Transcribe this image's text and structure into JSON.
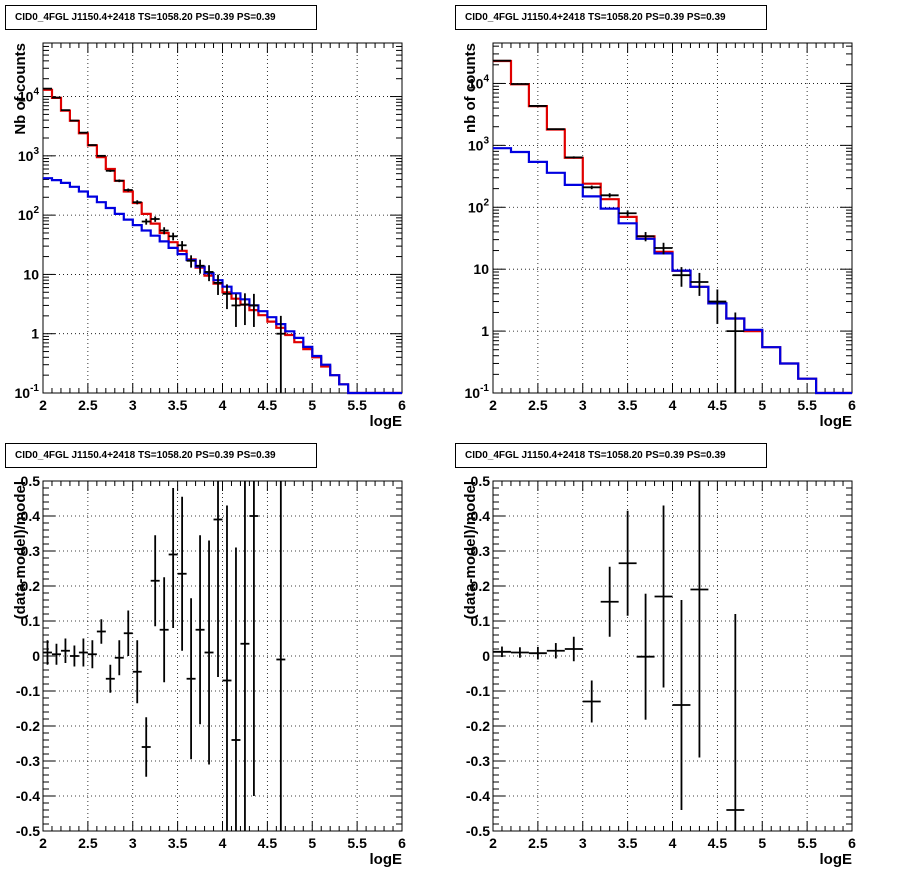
{
  "colors": {
    "data": "#000000",
    "model_total": "#e00000",
    "model_component": "#0000e0",
    "grid": "#000000"
  },
  "chart_data": [
    {
      "type": "line",
      "title": "CID0_4FGL J1150.4+2418 TS=1058.20 PS=0.39 PS=0.39",
      "xlabel": "logE",
      "ylabel": "Nb of counts",
      "xlim": [
        2,
        6
      ],
      "ylim": [
        0.1,
        80000
      ],
      "yscale": "log",
      "grid": true,
      "x_ticks": [
        "2",
        "2.5",
        "3",
        "3.5",
        "4",
        "4.5",
        "5",
        "5.5",
        "6"
      ],
      "y_ticks": [
        "10^-1",
        "1",
        "10",
        "10^2",
        "10^3",
        "10^4"
      ],
      "bin_width": 0.1,
      "series": [
        {
          "kind": "hist",
          "color": "#e00000",
          "bin_low": [
            2.0,
            2.1,
            2.2,
            2.3,
            2.4,
            2.5,
            2.6,
            2.7,
            2.8,
            2.9,
            3.0,
            3.1,
            3.2,
            3.3,
            3.4,
            3.5,
            3.6,
            3.7,
            3.8,
            3.9,
            4.0,
            4.1,
            4.2,
            4.3,
            4.4,
            4.5,
            4.6,
            4.7,
            4.8,
            4.9,
            5.0,
            5.1,
            5.2,
            5.3,
            5.4,
            5.5,
            5.6,
            5.7,
            5.8,
            5.9
          ],
          "values": [
            13000,
            9500,
            5800,
            3900,
            2400,
            1500,
            950,
            600,
            380,
            250,
            160,
            105,
            72,
            50,
            35,
            25,
            18,
            13,
            9.5,
            7,
            5,
            3.9,
            3.1,
            2.5,
            2.05,
            1.6,
            1.26,
            0.95,
            0.72,
            0.55,
            0.4,
            0.28,
            0.2,
            0.14,
            0.1,
            0.1,
            0.1,
            0.1,
            0.1,
            0.1
          ]
        },
        {
          "kind": "hist",
          "color": "#0000e0",
          "bin_low": [
            2.0,
            2.1,
            2.2,
            2.3,
            2.4,
            2.5,
            2.6,
            2.7,
            2.8,
            2.9,
            3.0,
            3.1,
            3.2,
            3.3,
            3.4,
            3.5,
            3.6,
            3.7,
            3.8,
            3.9,
            4.0,
            4.1,
            4.2,
            4.3,
            4.4,
            4.5,
            4.6,
            4.7,
            4.8,
            4.9,
            5.0,
            5.1,
            5.2,
            5.3,
            5.4,
            5.5,
            5.6,
            5.7,
            5.8,
            5.9
          ],
          "values": [
            420,
            390,
            350,
            300,
            250,
            205,
            165,
            132,
            105,
            84,
            68,
            55,
            45,
            36,
            28,
            22,
            17.5,
            13.5,
            10.5,
            8,
            6.2,
            4.8,
            3.8,
            3,
            2.4,
            1.9,
            1.45,
            1.1,
            0.85,
            0.6,
            0.42,
            0.3,
            0.2,
            0.14,
            0.1,
            0.1,
            0.1,
            0.1,
            0.1,
            0.1
          ]
        },
        {
          "kind": "points",
          "color": "#000000",
          "x": [
            2.05,
            2.15,
            2.25,
            2.35,
            2.45,
            2.55,
            2.65,
            2.75,
            2.85,
            2.95,
            3.05,
            3.15,
            3.25,
            3.35,
            3.45,
            3.55,
            3.65,
            3.75,
            3.85,
            3.95,
            4.05,
            4.15,
            4.25,
            4.35,
            4.65
          ],
          "y": [
            13600,
            9600,
            5900,
            3930,
            2460,
            1520,
            1000,
            560,
            380,
            265,
            165,
            78,
            86,
            55,
            44,
            31,
            17,
            14,
            11,
            7.2,
            4.7,
            3,
            3.1,
            3,
            1.0
          ],
          "err_low": [
            117,
            98,
            77,
            63,
            50,
            39,
            32,
            24,
            20,
            16,
            13,
            9,
            9,
            7.5,
            6.5,
            5.5,
            4,
            3.7,
            3.3,
            2.7,
            2.1,
            1.7,
            1.7,
            1.7,
            1.0
          ],
          "err_high": [
            117,
            98,
            77,
            63,
            50,
            39,
            32,
            24,
            20,
            16,
            13,
            9,
            9,
            7.5,
            6.5,
            5.5,
            4,
            3.7,
            3.3,
            2.7,
            2.1,
            1.7,
            1.7,
            1.7,
            1.0
          ]
        }
      ]
    },
    {
      "type": "line",
      "title": "CID0_4FGL J1150.4+2418 TS=1058.20 PS=0.39 PS=0.39",
      "xlabel": "logE",
      "ylabel": "nb of counts",
      "xlim": [
        2,
        6
      ],
      "ylim": [
        0.1,
        45000
      ],
      "yscale": "log",
      "grid": true,
      "x_ticks": [
        "2",
        "2.5",
        "3",
        "3.5",
        "4",
        "4.5",
        "5",
        "5.5",
        "6"
      ],
      "y_ticks": [
        "10^-1",
        "1",
        "10",
        "10^2",
        "10^3",
        "10^4"
      ],
      "bin_width": 0.2,
      "series": [
        {
          "kind": "hist",
          "color": "#e00000",
          "bin_low": [
            2.0,
            2.2,
            2.4,
            2.6,
            2.8,
            3.0,
            3.2,
            3.4,
            3.6,
            3.8,
            4.0,
            4.2,
            4.4,
            4.6,
            4.8,
            5.0,
            5.2,
            5.4,
            5.6,
            5.8
          ],
          "values": [
            23000,
            9700,
            4300,
            1800,
            630,
            240,
            135,
            70,
            34,
            19,
            9.4,
            5.2,
            2.8,
            1.6,
            1.0,
            0.55,
            0.3,
            0.17,
            0.1,
            0.1
          ]
        },
        {
          "kind": "hist",
          "color": "#0000e0",
          "bin_low": [
            2.0,
            2.2,
            2.4,
            2.6,
            2.8,
            3.0,
            3.2,
            3.4,
            3.6,
            3.8,
            4.0,
            4.2,
            4.4,
            4.6,
            4.8,
            5.0,
            5.2,
            5.4,
            5.6,
            5.8
          ],
          "values": [
            900,
            780,
            540,
            360,
            230,
            150,
            95,
            55,
            31,
            18,
            9.5,
            5.2,
            2.8,
            1.6,
            1.05,
            0.55,
            0.3,
            0.17,
            0.1,
            0.1
          ]
        },
        {
          "kind": "points",
          "color": "#000000",
          "x": [
            2.1,
            2.3,
            2.5,
            2.7,
            2.9,
            3.1,
            3.3,
            3.5,
            3.7,
            3.9,
            4.1,
            4.3,
            4.5,
            4.7
          ],
          "y": [
            23300,
            9800,
            4330,
            1830,
            640,
            210,
            156,
            80,
            34,
            22,
            8,
            6.2,
            3,
            1.0
          ],
          "err_low": [
            150,
            99,
            66,
            43,
            25,
            14,
            12.5,
            9,
            5.8,
            4.7,
            2.8,
            2.5,
            1.7,
            1.0
          ],
          "err_high": [
            150,
            99,
            66,
            43,
            25,
            14,
            12.5,
            9,
            5.8,
            4.7,
            2.8,
            2.5,
            1.7,
            1.0
          ]
        }
      ]
    },
    {
      "type": "scatter",
      "title": "CID0_4FGL J1150.4+2418 TS=1058.20 PS=0.39 PS=0.39",
      "xlabel": "logE",
      "ylabel": "(data-model)/model",
      "xlim": [
        2,
        6
      ],
      "ylim": [
        -0.5,
        0.5
      ],
      "yscale": "linear",
      "grid": true,
      "x_ticks": [
        "2",
        "2.5",
        "3",
        "3.5",
        "4",
        "4.5",
        "5",
        "5.5",
        "6"
      ],
      "y_ticks": [
        "-0.5",
        "-0.4",
        "-0.3",
        "-0.2",
        "-0.1",
        "0",
        "0.1",
        "0.2",
        "0.3",
        "0.4",
        "0.5"
      ],
      "bin_width": 0.1,
      "series": [
        {
          "kind": "points",
          "color": "#000000",
          "x": [
            2.05,
            2.15,
            2.25,
            2.35,
            2.45,
            2.55,
            2.65,
            2.75,
            2.85,
            2.95,
            3.05,
            3.15,
            3.25,
            3.35,
            3.45,
            3.55,
            3.65,
            3.75,
            3.85,
            3.95,
            4.05,
            4.15,
            4.25,
            4.35,
            4.65
          ],
          "y": [
            0.01,
            0.005,
            0.015,
            0.0,
            0.01,
            0.005,
            0.07,
            -0.065,
            -0.005,
            0.065,
            -0.045,
            -0.26,
            0.215,
            0.075,
            0.29,
            0.235,
            -0.065,
            0.075,
            0.01,
            0.39,
            -0.07,
            -0.24,
            0.035,
            0.4,
            -0.01
          ],
          "err_low": [
            0.035,
            0.03,
            0.035,
            0.03,
            0.04,
            0.04,
            0.035,
            0.04,
            0.05,
            0.065,
            0.09,
            0.085,
            0.13,
            0.15,
            0.21,
            0.22,
            0.23,
            0.27,
            0.32,
            0.45,
            0.5,
            0.55,
            0.6,
            0.8,
            1.0
          ],
          "err_high": [
            0.035,
            0.03,
            0.035,
            0.03,
            0.04,
            0.04,
            0.035,
            0.04,
            0.05,
            0.065,
            0.09,
            0.085,
            0.13,
            0.15,
            0.19,
            0.22,
            0.23,
            0.27,
            0.32,
            0.45,
            0.5,
            0.55,
            0.6,
            0.8,
            1.0
          ]
        }
      ]
    },
    {
      "type": "scatter",
      "title": "CID0_4FGL J1150.4+2418 TS=1058.20 PS=0.39 PS=0.39",
      "xlabel": "logE",
      "ylabel": "(data-model)/model",
      "xlim": [
        2,
        6
      ],
      "ylim": [
        -0.5,
        0.5
      ],
      "yscale": "linear",
      "grid": true,
      "x_ticks": [
        "2",
        "2.5",
        "3",
        "3.5",
        "4",
        "4.5",
        "5",
        "5.5",
        "6"
      ],
      "y_ticks": [
        "-0.5",
        "-0.4",
        "-0.3",
        "-0.2",
        "-0.1",
        "0",
        "0.1",
        "0.2",
        "0.3",
        "0.4",
        "0.5"
      ],
      "bin_width": 0.2,
      "series": [
        {
          "kind": "points",
          "color": "#000000",
          "x": [
            2.1,
            2.3,
            2.5,
            2.7,
            2.9,
            3.1,
            3.3,
            3.5,
            3.7,
            3.9,
            4.1,
            4.3,
            4.7
          ],
          "y": [
            0.012,
            0.01,
            0.008,
            0.015,
            0.02,
            -0.13,
            0.155,
            0.265,
            -0.002,
            0.17,
            -0.14,
            0.19,
            -0.44
          ],
          "err_low": [
            0.015,
            0.015,
            0.018,
            0.022,
            0.035,
            0.06,
            0.1,
            0.15,
            0.18,
            0.26,
            0.3,
            0.48,
            0.56
          ],
          "err_high": [
            0.015,
            0.015,
            0.018,
            0.022,
            0.035,
            0.06,
            0.1,
            0.15,
            0.18,
            0.26,
            0.3,
            0.48,
            0.56
          ]
        }
      ]
    }
  ]
}
